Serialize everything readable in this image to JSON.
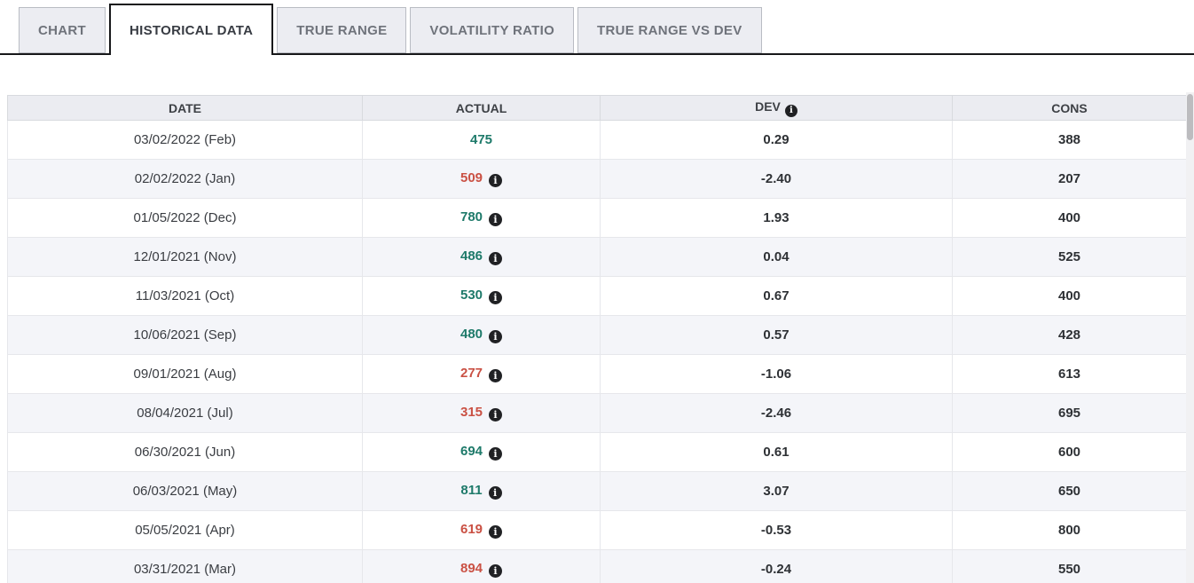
{
  "tabs": [
    {
      "label": "CHART",
      "active": false
    },
    {
      "label": "HISTORICAL DATA",
      "active": true
    },
    {
      "label": "TRUE RANGE",
      "active": false
    },
    {
      "label": "VOLATILITY RATIO",
      "active": false
    },
    {
      "label": "TRUE RANGE VS DEV",
      "active": false
    }
  ],
  "table": {
    "columns": [
      {
        "label": "DATE",
        "info": false
      },
      {
        "label": "ACTUAL",
        "info": false
      },
      {
        "label": "DEV",
        "info": true
      },
      {
        "label": "CONS",
        "info": false
      }
    ],
    "rows": [
      {
        "date": "03/02/2022 (Feb)",
        "actual": "475",
        "trend": "positive",
        "info": false,
        "dev": "0.29",
        "cons": "388"
      },
      {
        "date": "02/02/2022 (Jan)",
        "actual": "509",
        "trend": "negative",
        "info": true,
        "dev": "-2.40",
        "cons": "207"
      },
      {
        "date": "01/05/2022 (Dec)",
        "actual": "780",
        "trend": "positive",
        "info": true,
        "dev": "1.93",
        "cons": "400"
      },
      {
        "date": "12/01/2021 (Nov)",
        "actual": "486",
        "trend": "positive",
        "info": true,
        "dev": "0.04",
        "cons": "525"
      },
      {
        "date": "11/03/2021 (Oct)",
        "actual": "530",
        "trend": "positive",
        "info": true,
        "dev": "0.67",
        "cons": "400"
      },
      {
        "date": "10/06/2021 (Sep)",
        "actual": "480",
        "trend": "positive",
        "info": true,
        "dev": "0.57",
        "cons": "428"
      },
      {
        "date": "09/01/2021 (Aug)",
        "actual": "277",
        "trend": "negative",
        "info": true,
        "dev": "-1.06",
        "cons": "613"
      },
      {
        "date": "08/04/2021 (Jul)",
        "actual": "315",
        "trend": "negative",
        "info": true,
        "dev": "-2.46",
        "cons": "695"
      },
      {
        "date": "06/30/2021 (Jun)",
        "actual": "694",
        "trend": "positive",
        "info": true,
        "dev": "0.61",
        "cons": "600"
      },
      {
        "date": "06/03/2021 (May)",
        "actual": "811",
        "trend": "positive",
        "info": true,
        "dev": "3.07",
        "cons": "650"
      },
      {
        "date": "05/05/2021 (Apr)",
        "actual": "619",
        "trend": "negative",
        "info": true,
        "dev": "-0.53",
        "cons": "800"
      },
      {
        "date": "03/31/2021 (Mar)",
        "actual": "894",
        "trend": "negative",
        "info": true,
        "dev": "-0.24",
        "cons": "550"
      }
    ]
  },
  "icons": {
    "info": "i"
  },
  "colors": {
    "positive": "#1e7a6a",
    "negative": "#ca5144"
  }
}
